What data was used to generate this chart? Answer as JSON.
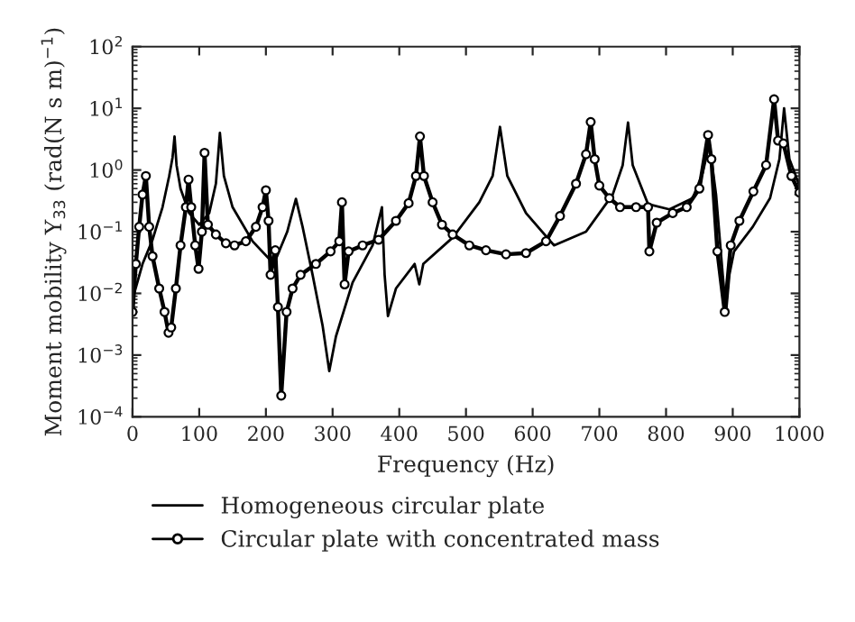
{
  "chart_data": {
    "type": "line",
    "xlabel": "Frequency (Hz)",
    "ylabel": "Moment mobility Y$_{33}$ (rad(N s m)$^{−1}$)",
    "log": "y",
    "xlim": [
      0,
      1000
    ],
    "xticks": [
      0,
      100,
      200,
      300,
      400,
      500,
      600,
      700,
      800,
      900,
      1000
    ],
    "ylim": [
      0.0001,
      100
    ],
    "yticks": [
      {
        "value": 0.0001,
        "label": "10$^{−4}$"
      },
      {
        "value": 0.001,
        "label": "10$^{−3}$"
      },
      {
        "value": 0.01,
        "label": "10$^{−2}$"
      },
      {
        "value": 0.1,
        "label": "10$^{−1}$"
      },
      {
        "value": 1,
        "label": "10$^{0}$"
      },
      {
        "value": 10,
        "label": "10$^{1}$"
      },
      {
        "value": 100,
        "label": "10$^{2}$"
      }
    ],
    "grid": false,
    "legend": "bottom",
    "series": [
      {
        "name": "Homogeneous circular plate",
        "color": "#000000",
        "marker": "none",
        "line_style": "solid",
        "x": [
          0,
          15,
          30,
          45,
          55,
          60,
          63,
          66,
          72,
          85,
          100,
          115,
          125,
          131,
          137,
          150,
          180,
          212,
          232,
          245,
          255,
          270,
          285,
          295,
          305,
          330,
          360,
          374,
          378,
          383,
          395,
          423,
          430,
          436,
          480,
          520,
          540,
          551,
          562,
          590,
          632,
          680,
          720,
          735,
          743,
          750,
          773,
          805,
          840,
          855,
          865,
          875,
          885,
          890,
          895,
          902,
          930,
          956,
          970,
          977,
          985,
          1000
        ],
        "values": [
          0.008,
          0.03,
          0.074,
          0.25,
          0.8,
          1.6,
          3.5,
          1.2,
          0.5,
          0.2,
          0.13,
          0.2,
          0.6,
          4,
          0.8,
          0.25,
          0.07,
          0.03,
          0.1,
          0.34,
          0.12,
          0.02,
          0.003,
          0.00055,
          0.002,
          0.015,
          0.06,
          0.25,
          0.02,
          0.0043,
          0.012,
          0.03,
          0.014,
          0.03,
          0.08,
          0.3,
          0.8,
          5,
          0.8,
          0.2,
          0.06,
          0.1,
          0.4,
          1.2,
          5.9,
          1.2,
          0.28,
          0.23,
          0.35,
          0.9,
          2.7,
          0.4,
          0.02,
          0.005,
          0.02,
          0.048,
          0.12,
          0.35,
          1.5,
          10,
          1.5,
          0.56
        ]
      },
      {
        "name": "Circular plate with concentrated mass",
        "color": "#000000",
        "marker": "circle",
        "line_style": "solid",
        "x": [
          0,
          5,
          10,
          15,
          20,
          25,
          30,
          40,
          48,
          54,
          58,
          65,
          72,
          80,
          84,
          88,
          94,
          99,
          104,
          108,
          113,
          125,
          140,
          153,
          170,
          185,
          195,
          200,
          204,
          207,
          214,
          218,
          223,
          231,
          240,
          252,
          275,
          297,
          310,
          314,
          318,
          324,
          345,
          369,
          395,
          414,
          425,
          431,
          437,
          450,
          464,
          480,
          505,
          530,
          560,
          590,
          620,
          641,
          665,
          680,
          687,
          693,
          700,
          715,
          731,
          755,
          773,
          775,
          786,
          810,
          831,
          850,
          863,
          868,
          877,
          888,
          897,
          910,
          931,
          950,
          962,
          968,
          976,
          988,
          1000
        ],
        "values": [
          0.005,
          0.03,
          0.12,
          0.4,
          0.8,
          0.12,
          0.04,
          0.012,
          0.005,
          0.0023,
          0.0028,
          0.012,
          0.06,
          0.25,
          0.7,
          0.25,
          0.06,
          0.025,
          0.1,
          1.9,
          0.13,
          0.09,
          0.065,
          0.06,
          0.07,
          0.12,
          0.25,
          0.47,
          0.15,
          0.02,
          0.05,
          0.006,
          0.00022,
          0.005,
          0.012,
          0.02,
          0.03,
          0.048,
          0.07,
          0.3,
          0.014,
          0.048,
          0.06,
          0.074,
          0.15,
          0.29,
          0.8,
          3.5,
          0.8,
          0.3,
          0.13,
          0.09,
          0.06,
          0.05,
          0.043,
          0.045,
          0.07,
          0.18,
          0.6,
          1.8,
          6,
          1.5,
          0.56,
          0.35,
          0.25,
          0.25,
          0.25,
          0.048,
          0.14,
          0.2,
          0.25,
          0.5,
          3.7,
          1.5,
          0.048,
          0.005,
          0.06,
          0.15,
          0.45,
          1.2,
          14,
          3,
          2.7,
          0.8,
          0.43
        ]
      }
    ]
  }
}
